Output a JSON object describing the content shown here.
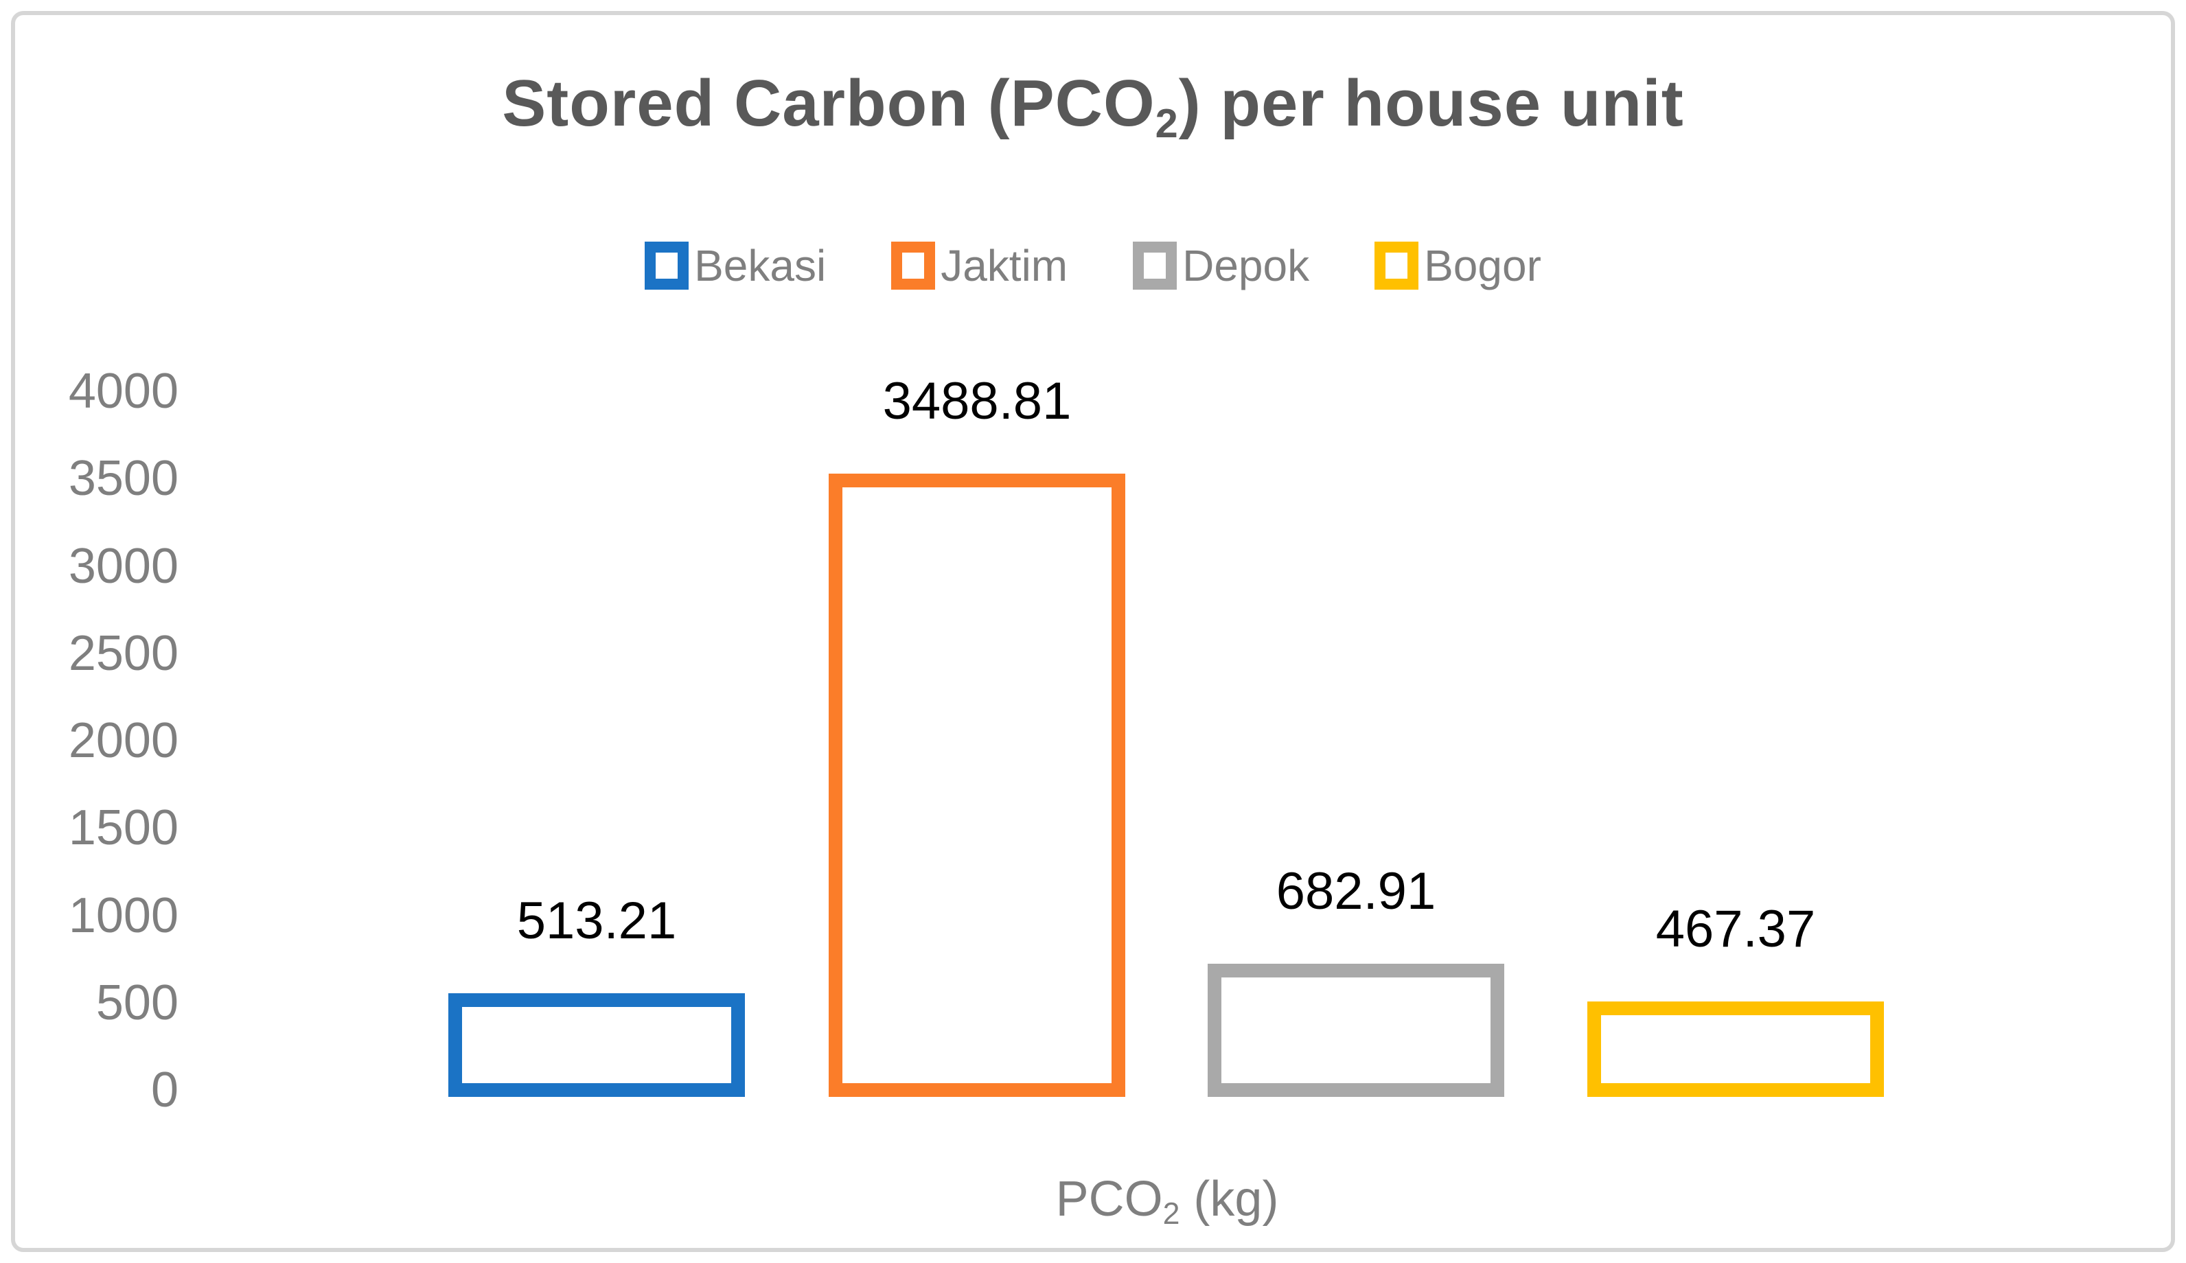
{
  "styles": {
    "background": "#FFFFFF",
    "frame_border_color": "#D6D6D6",
    "title_color": "#595959",
    "axis_text_color": "#7F7F7F",
    "data_label_color": "#000000"
  },
  "chart_data": {
    "type": "bar",
    "title": "Stored Carbon (PCO2) per house unit",
    "title_parts": {
      "main": "Stored Carbon (PCO",
      "sub": "2",
      "rest": ") per house unit"
    },
    "legend_position": "top",
    "legend_marker_style": "hollow-square",
    "categories": [
      "Bekasi",
      "Jaktim",
      "Depok",
      "Bogor"
    ],
    "values": [
      513.21,
      3488.81,
      682.91,
      467.37
    ],
    "data_labels": [
      "513.21",
      "3488.81",
      "682.91",
      "467.37"
    ],
    "series_colors": [
      "#1B73C5",
      "#FB7D29",
      "#A9A9A9",
      "#FFC000"
    ],
    "bar_fill": "#FFFFFF",
    "bar_style": "hollow_outline",
    "xlabel": "PCO2 (kg)",
    "xlabel_parts": {
      "main": "PCO",
      "sub": "2",
      "rest": " (kg)"
    },
    "ylabel": "",
    "ylim": [
      0,
      4000
    ],
    "yticks": [
      0,
      500,
      1000,
      1500,
      2000,
      2500,
      3000,
      3500,
      4000
    ],
    "grid": false
  }
}
